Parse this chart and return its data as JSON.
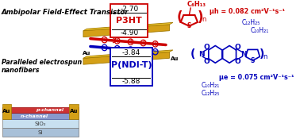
{
  "bg_color": "#ffffff",
  "title": "Ambipolar Field-Effect Transistor",
  "subtitle1": "Paralleled electrospun",
  "subtitle2": "nanofibers",
  "p3ht_label": "P3HT",
  "p3ht_homo": "-4.90",
  "p3ht_lumo": "-2.70",
  "pndit_label": "P(NDI-T)",
  "pndit_homo": "-5.88",
  "pndit_lumo": "-3.84",
  "p_channel_label": "p-channel",
  "n_channel_label": "n-channel",
  "au_label": "Au",
  "sio2_label": "SiO₂",
  "si_label": "Si",
  "mu_h_label": "μh = 0.082 cm²V⁻¹s⁻¹",
  "mu_e_label": "μe = 0.075 cm²V⁻¹s⁻¹",
  "c6h13": "C₆H₁₃",
  "c12h25_top": "C₁₂H₂₅",
  "c10h21_top": "C₁₀H₂₁",
  "c10h21_bot": "C₁₀H₂₁",
  "c12h25_bot": "C₁₂H₂₅",
  "red": "#cc0000",
  "blue": "#0000bb",
  "gold": "#D4A017",
  "gold_edge": "#A07800",
  "gold_top": "#F0C830",
  "sio2_color": "#c8e0f0",
  "si_color": "#a8c0d8",
  "nchan_color": "#8899cc",
  "pchan_color": "#cc3333",
  "nchan_edge": "#5566aa",
  "pchan_edge": "#990000"
}
